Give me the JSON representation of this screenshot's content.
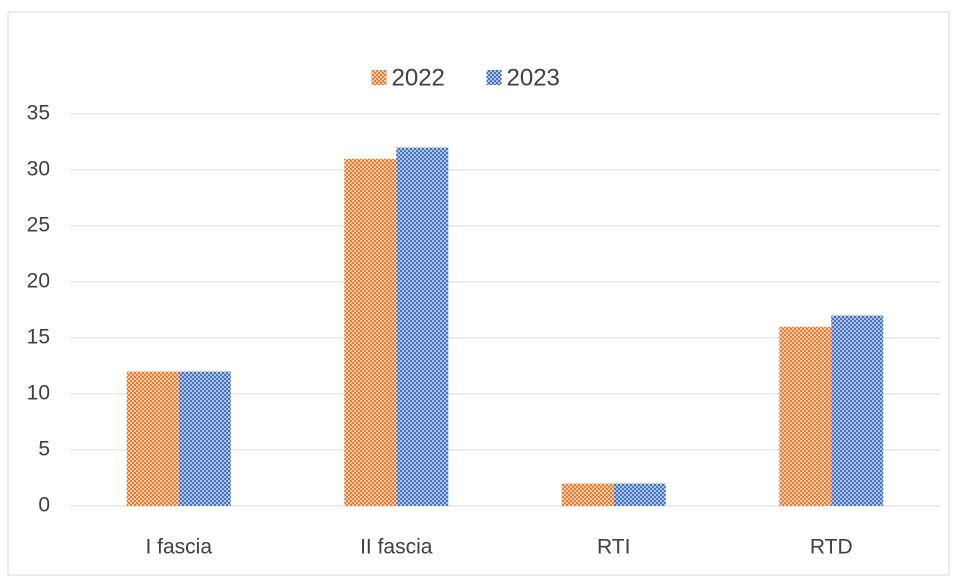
{
  "chart_data": {
    "type": "bar",
    "categories": [
      "I fascia",
      "II fascia",
      "RTI",
      "RTD"
    ],
    "series": [
      {
        "name": "2022",
        "color": "#ed7d31",
        "values": [
          12,
          31,
          2,
          16
        ]
      },
      {
        "name": "2023",
        "color": "#4472c4",
        "values": [
          12,
          32,
          2,
          17
        ]
      }
    ],
    "ylim": [
      0,
      35
    ],
    "yticks": [
      0,
      5,
      10,
      15,
      20,
      25,
      30,
      35
    ],
    "grid": true,
    "legend": "top"
  }
}
